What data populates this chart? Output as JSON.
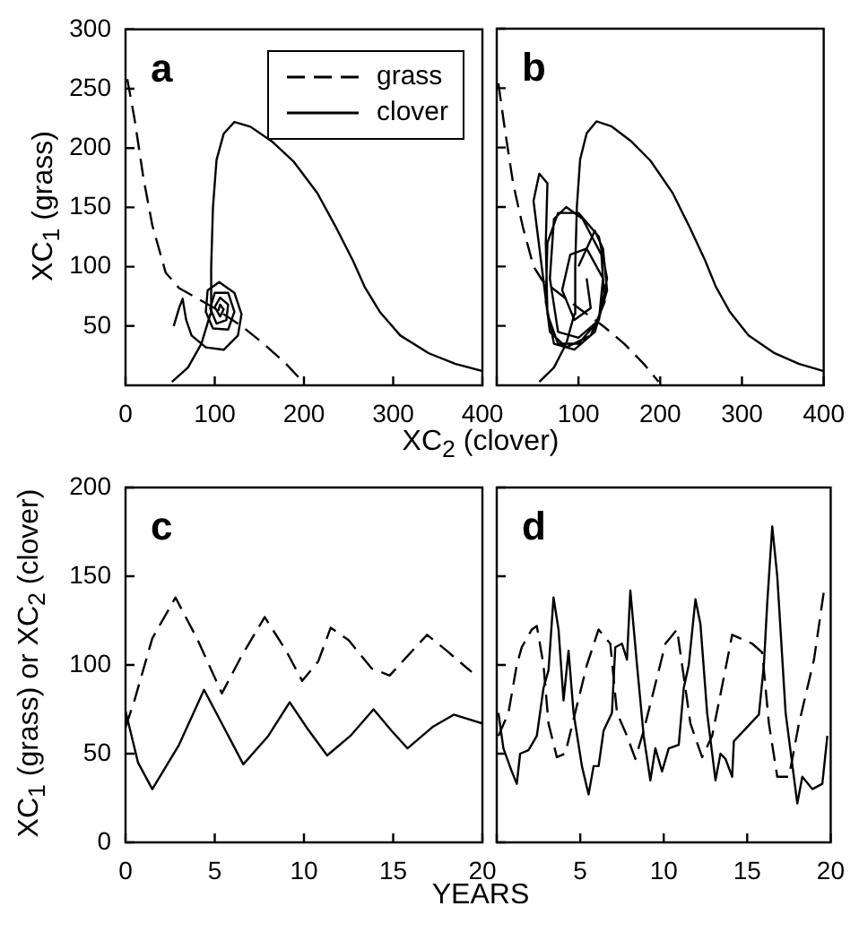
{
  "chart_data": [
    {
      "type": "line",
      "xlabel": "XC$_{2}$ (clover)",
      "ylabel": "XC$_{1}$ (grass)",
      "annotations": [
        "a"
      ],
      "xlim": [
        0,
        400
      ],
      "xticks": [
        0,
        100,
        200,
        300,
        400
      ],
      "ylim": [
        0,
        300
      ],
      "yticks": [
        50,
        100,
        150,
        200,
        250,
        300
      ],
      "legend": "top right",
      "marker": "none",
      "series": [
        {
          "name": "grass",
          "color": "#000000",
          "line_style": "dashed",
          "x": [
            2,
            10,
            20,
            30,
            45,
            60,
            100,
            130,
            155,
            180,
            200
          ],
          "values": [
            258,
            225,
            175,
            135,
            95,
            82,
            65,
            50,
            35,
            18,
            2
          ]
        },
        {
          "name": "clover",
          "color": "#000000",
          "line_style": "solid",
          "x": [
            52,
            70,
            85,
            95,
            96,
            98,
            102,
            110,
            122,
            140,
            165,
            188,
            215,
            236,
            255,
            268,
            285,
            308,
            340,
            370,
            400
          ],
          "values": [
            3,
            15,
            35,
            60,
            100,
            150,
            190,
            212,
            222,
            218,
            205,
            189,
            162,
            133,
            105,
            83,
            62,
            42,
            27,
            18,
            12
          ]
        },
        {
          "color": "#000000",
          "line_style": "solid",
          "x": [
            54,
            60,
            64,
            68,
            74,
            90,
            110,
            126,
            130,
            122,
            105,
            92,
            90,
            98,
            115,
            122,
            115,
            100,
            95,
            102,
            113,
            115,
            106,
            100,
            106,
            110,
            106,
            104
          ],
          "values": [
            50,
            65,
            73,
            55,
            42,
            32,
            30,
            42,
            60,
            78,
            87,
            80,
            62,
            48,
            47,
            62,
            78,
            78,
            65,
            52,
            55,
            68,
            74,
            66,
            58,
            64,
            68,
            63
          ]
        }
      ]
    },
    {
      "type": "line",
      "annotations": [
        "b"
      ],
      "xlim": [
        0,
        400
      ],
      "xticks": [
        {
          "value": 0,
          "label": null
        },
        100,
        200,
        300,
        400
      ],
      "ylim": [
        0,
        300
      ],
      "yticks": [
        50,
        100,
        150,
        200,
        250,
        300
      ],
      "tick_labels": "x",
      "marker": "none",
      "series": [
        {
          "color": "#000000",
          "line_style": "dashed",
          "x": [
            2,
            10,
            20,
            32,
            45,
            56,
            100,
            130,
            156,
            180,
            198
          ],
          "values": [
            254,
            215,
            170,
            133,
            100,
            88,
            65,
            50,
            35,
            18,
            3
          ]
        },
        {
          "color": "#000000",
          "line_style": "solid",
          "x": [
            52,
            70,
            85,
            95,
            96,
            98,
            102,
            110,
            122,
            140,
            165,
            188,
            215,
            236,
            255,
            268,
            285,
            308,
            340,
            370,
            400
          ],
          "values": [
            3,
            15,
            35,
            60,
            100,
            150,
            190,
            212,
            222,
            218,
            205,
            189,
            162,
            133,
            105,
            83,
            62,
            42,
            27,
            18,
            12
          ]
        },
        {
          "color": "#000000",
          "line_style": "solid",
          "x": [
            100,
            120,
            130,
            135,
            120,
            95,
            70,
            60,
            62,
            75,
            100,
            125,
            135,
            125,
            100,
            75,
            65,
            70,
            85,
            105,
            128,
            132,
            115,
            85,
            65,
            55,
            45,
            52,
            62,
            60,
            62,
            75,
            100,
            125,
            130,
            110,
            90,
            80,
            95,
            115,
            110
          ],
          "values": [
            100,
            130,
            115,
            80,
            45,
            30,
            35,
            70,
            120,
            145,
            145,
            125,
            90,
            55,
            40,
            45,
            90,
            140,
            150,
            140,
            110,
            70,
            42,
            32,
            45,
            100,
            155,
            178,
            170,
            120,
            60,
            35,
            35,
            55,
            90,
            115,
            110,
            80,
            55,
            65,
            90
          ]
        }
      ]
    },
    {
      "type": "line",
      "xlabel": "YEARS",
      "ylabel": "XC$_{1}$ (grass) or XC$_{2}$ (clover)",
      "annotations": [
        "c"
      ],
      "xlim": [
        0,
        20
      ],
      "xticks": [
        0,
        5,
        10,
        15,
        20
      ],
      "ylim": [
        0,
        200
      ],
      "yticks": [
        0,
        50,
        100,
        150,
        200
      ],
      "marker": "none",
      "series": [
        {
          "color": "#000000",
          "line_style": "dashed",
          "x": [
            0,
            0.5,
            1.5,
            2.8,
            4,
            5.4,
            6.5,
            7.8,
            9,
            9.9,
            10.8,
            11.5,
            12.5,
            13.8,
            14.8,
            15.8,
            16.9,
            18,
            19.4
          ],
          "values": [
            65,
            80,
            115,
            138,
            115,
            84,
            105,
            127,
            108,
            91,
            102,
            121,
            114,
            98,
            94,
            105,
            117,
            108,
            96
          ]
        },
        {
          "color": "#000000",
          "line_style": "solid",
          "x": [
            0,
            0.7,
            1.5,
            3,
            4.4,
            5.5,
            6.6,
            8,
            9.2,
            10.2,
            11.3,
            12.6,
            13.9,
            14.9,
            15.8,
            17.2,
            18.4,
            20
          ],
          "values": [
            74,
            45,
            30,
            55,
            86,
            65,
            44,
            60,
            79,
            64,
            49,
            60,
            75,
            63,
            53,
            65,
            72,
            67
          ]
        }
      ]
    },
    {
      "type": "line",
      "annotations": [
        "d"
      ],
      "xlim": [
        0,
        20
      ],
      "xticks": [
        {
          "value": 0,
          "label": null
        },
        5,
        10,
        15,
        20
      ],
      "ylim": [
        0,
        200
      ],
      "yticks": [
        0,
        50,
        100,
        150,
        200
      ],
      "tick_labels": "x",
      "marker": "none",
      "series": [
        {
          "color": "#000000",
          "line_style": "dashed",
          "x": [
            0.1,
            0.7,
            1.2,
            1.5,
            2.1,
            2.4,
            2.8,
            3.1,
            3.6,
            4.1,
            4.8,
            5.4,
            6.1,
            6.8,
            7.2,
            7.8,
            8.3,
            8.8,
            9.6,
            10.1,
            10.8,
            11.1,
            11.6,
            12.3,
            12.9,
            13.6,
            14.1,
            15.3,
            15.9,
            16.3,
            16.8,
            17.5,
            18.1,
            19,
            19.6,
            19.8
          ],
          "values": [
            60,
            73,
            100,
            110,
            120,
            122,
            100,
            67,
            48,
            50,
            77,
            100,
            120,
            112,
            73,
            60,
            47,
            63,
            93,
            112,
            120,
            100,
            67,
            48,
            60,
            93,
            117,
            112,
            107,
            67,
            37,
            37,
            67,
            103,
            142,
            140
          ]
        },
        {
          "color": "#000000",
          "line_style": "solid",
          "x": [
            0.1,
            0.4,
            0.9,
            1.2,
            1.4,
            1.9,
            2.4,
            2.8,
            3.1,
            3.4,
            3.7,
            4,
            4.3,
            4.6,
            5.1,
            5.5,
            5.8,
            6.1,
            6.4,
            6.9,
            7.1,
            7.5,
            7.8,
            8,
            8.4,
            8.8,
            9.2,
            9.5,
            9.9,
            10.3,
            10.9,
            11.2,
            11.5,
            11.9,
            12.2,
            12.6,
            13.1,
            13.4,
            13.7,
            14.1,
            14.2,
            15.7,
            16,
            16.2,
            16.5,
            16.8,
            17.3,
            18,
            18.3,
            18.9,
            19.5,
            19.8
          ],
          "values": [
            73,
            53,
            40,
            33,
            50,
            52,
            60,
            87,
            97,
            138,
            120,
            80,
            108,
            73,
            43,
            27,
            43,
            43,
            63,
            73,
            110,
            112,
            103,
            142,
            100,
            60,
            35,
            53,
            40,
            53,
            55,
            87,
            100,
            137,
            123,
            73,
            35,
            50,
            47,
            37,
            57,
            72,
            100,
            135,
            178,
            150,
            73,
            22,
            37,
            30,
            33,
            60
          ]
        }
      ]
    }
  ]
}
